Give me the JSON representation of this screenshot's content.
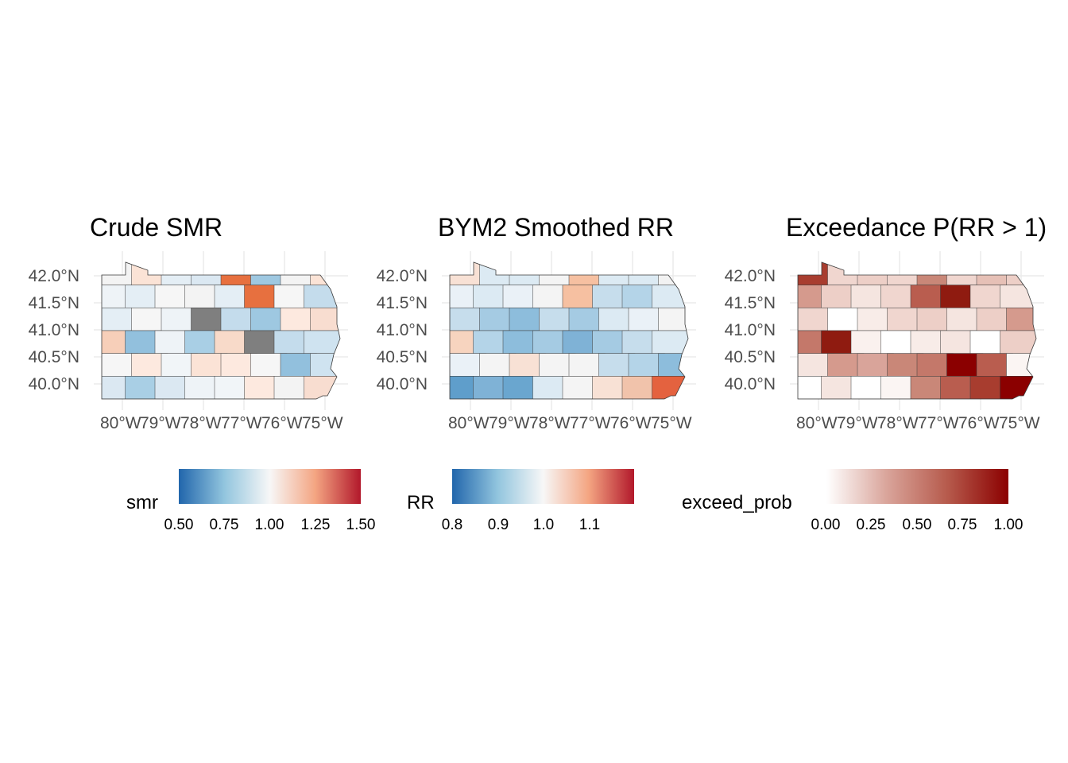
{
  "panels": [
    {
      "title": "Crude SMR",
      "y_ticks": [
        "42.0°N",
        "41.5°N",
        "41.0°N",
        "40.5°N",
        "40.0°N"
      ],
      "x_ticks": [
        "80°W",
        "79°W",
        "78°W",
        "77°W",
        "76°W",
        "75°W"
      ],
      "legend": {
        "title": "smr",
        "ticks": [
          "0.50",
          "0.75",
          "1.00",
          "1.25",
          "1.50"
        ],
        "gradient": [
          "#2166ac",
          "#92c5de",
          "#f7f7f7",
          "#f4a582",
          "#b2182b"
        ]
      }
    },
    {
      "title": "BYM2 Smoothed RR",
      "y_ticks": [
        "42.0°N",
        "41.5°N",
        "41.0°N",
        "40.5°N",
        "40.0°N"
      ],
      "x_ticks": [
        "80°W",
        "79°W",
        "78°W",
        "77°W",
        "76°W",
        "75°W"
      ],
      "legend": {
        "title": "RR",
        "ticks": [
          "0.8",
          "0.9",
          "1.0",
          "1.1"
        ],
        "gradient": [
          "#2166ac",
          "#92c5de",
          "#f7f7f7",
          "#f4a582",
          "#b2182b"
        ]
      }
    },
    {
      "title": "Exceedance P(RR > 1)",
      "y_ticks": [
        "42.0°N",
        "41.5°N",
        "41.0°N",
        "40.5°N",
        "40.0°N"
      ],
      "x_ticks": [
        "80°W",
        "79°W",
        "78°W",
        "77°W",
        "76°W",
        "75°W"
      ],
      "legend": {
        "title": "exceed_prob",
        "ticks": [
          "0.00",
          "0.25",
          "0.50",
          "0.75",
          "1.00"
        ],
        "gradient": [
          "#ffffff",
          "#d9a49a",
          "#b65a4c",
          "#8b0000"
        ]
      }
    }
  ],
  "colors": {
    "county_border": "#3a3a3a",
    "grid": "#ebebeb",
    "missing": "#7f7f7f"
  }
}
